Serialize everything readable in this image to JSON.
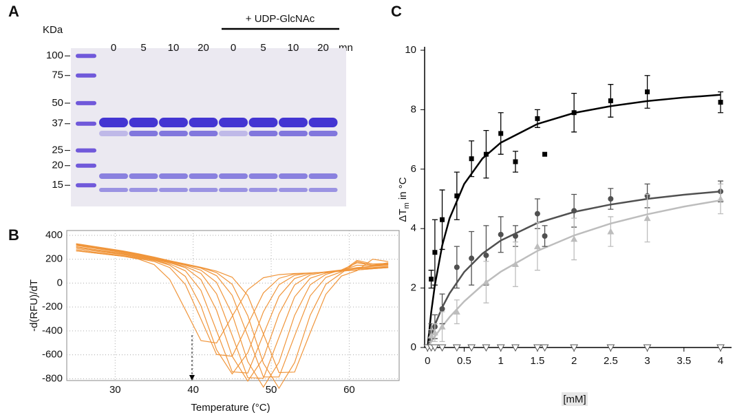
{
  "chart_data": [
    {
      "type": "gel",
      "panel": "A",
      "y_label": "KDa",
      "markers": [
        100,
        75,
        50,
        37,
        25,
        20,
        15
      ],
      "ylim": [
        11,
        112
      ],
      "log_scale": true,
      "lanes": [
        0,
        5,
        10,
        20,
        0,
        5,
        10,
        20
      ],
      "lane_unit": "mn",
      "treatment": "+ UDP-GlcNAc"
    },
    {
      "type": "line",
      "panel": "B",
      "x_label": "Temperature (°C)",
      "y_label": "-d(RFU)/dT",
      "color": "#f0953a",
      "grid": true,
      "xlim": [
        23.8,
        66.4
      ],
      "ylim": [
        -815,
        440
      ],
      "xticks": [
        30,
        40,
        50,
        60
      ],
      "yticks": [
        400,
        200,
        0,
        -200,
        -400,
        -600,
        -800
      ],
      "x": [
        25,
        27,
        29,
        31,
        33,
        35,
        37,
        39,
        41,
        43,
        45,
        47,
        49,
        51,
        53,
        55,
        57,
        59,
        61,
        63,
        65
      ],
      "series": [
        {
          "values": [
            270,
            255,
            240,
            225,
            201,
            155,
            30,
            -223,
            -481,
            -501,
            -278,
            -55,
            45,
            71,
            80,
            85,
            90,
            100,
            110,
            120,
            130
          ]
        },
        {
          "values": [
            270,
            255,
            240,
            225,
            205,
            181,
            130,
            -12,
            -301,
            -597,
            -612,
            -346,
            -82,
            40,
            76,
            85,
            90,
            100,
            110,
            120,
            130
          ]
        },
        {
          "values": [
            280,
            262,
            246,
            230,
            210,
            190,
            150,
            56,
            -190,
            -558,
            -760,
            -583,
            -240,
            -14,
            65,
            85,
            92,
            105,
            120,
            125,
            135
          ]
        },
        {
          "values": [
            290,
            272,
            255,
            238,
            216,
            190,
            160,
            103,
            -61,
            -399,
            -742,
            -752,
            -429,
            -111,
            38,
            80,
            95,
            110,
            125,
            130,
            140
          ]
        },
        {
          "values": [
            300,
            280,
            262,
            244,
            222,
            196,
            170,
            129,
            30,
            -228,
            -612,
            -820,
            -627,
            -258,
            -15,
            69,
            92,
            108,
            130,
            140,
            150
          ]
        },
        {
          "values": [
            305,
            285,
            266,
            248,
            226,
            200,
            170,
            139,
            81,
            -90,
            -438,
            -791,
            -796,
            -453,
            -115,
            41,
            84,
            105,
            150,
            145,
            155
          ]
        },
        {
          "values": [
            315,
            295,
            275,
            255,
            232,
            205,
            175,
            150,
            108,
            6,
            -260,
            -657,
            -870,
            -662,
            -270,
            -14,
            73,
            110,
            170,
            150,
            160
          ]
        },
        {
          "values": [
            320,
            300,
            280,
            260,
            236,
            210,
            180,
            155,
            125,
            62,
            -102,
            -442,
            -785,
            -785,
            -442,
            -107,
            47,
            95,
            190,
            160,
            165
          ]
        },
        {
          "values": [
            325,
            305,
            285,
            265,
            240,
            214,
            184,
            158,
            130,
            88,
            -10,
            -273,
            -670,
            -880,
            -665,
            -268,
            -10,
            83,
            180,
            150,
            170
          ]
        },
        {
          "values": [
            330,
            310,
            290,
            270,
            245,
            218,
            188,
            160,
            132,
            100,
            49,
            -104,
            -425,
            -749,
            -744,
            -415,
            -94,
            59,
            105,
            200,
            180
          ]
        }
      ]
    },
    {
      "type": "scatter",
      "panel": "C",
      "x_label": "[mM]",
      "y_label": [
        "ΔT",
        "m",
        " in °C"
      ],
      "xlim": [
        -0.04,
        4.15
      ],
      "ylim": [
        0,
        10
      ],
      "xticks": [
        0,
        0.5,
        1,
        1.5,
        2,
        2.5,
        3,
        3.5,
        4
      ],
      "yticks": [
        0,
        2,
        4,
        6,
        8,
        10
      ],
      "series": [
        {
          "color": "#000000",
          "marker": "square",
          "x": [
            0.05,
            0.1,
            0.2,
            0.4,
            0.6,
            0.8,
            1,
            1.2,
            1.5,
            1.6,
            2,
            2.5,
            3,
            4
          ],
          "values": [
            2.3,
            3.2,
            4.3,
            5.1,
            6.35,
            6.5,
            7.2,
            6.25,
            7.7,
            6.5,
            7.9,
            8.3,
            8.6,
            8.25
          ],
          "errors": [
            0.3,
            1.1,
            1,
            0.8,
            0.6,
            0.8,
            0.7,
            0.35,
            0.3,
            null,
            0.65,
            0.55,
            0.55,
            0.35
          ],
          "fit": {
            "x": [
              0,
              0.05,
              0.1,
              0.2,
              0.3,
              0.5,
              0.75,
              1,
              1.5,
              2,
              2.5,
              3,
              3.5,
              4
            ],
            "values": [
              0,
              1.19,
              2.1,
              3.43,
              4.34,
              5.5,
              6.36,
              6.89,
              7.52,
              7.89,
              8.12,
              8.29,
              8.41,
              8.5
            ]
          }
        },
        {
          "color": "#505050",
          "marker": "circle",
          "x": [
            0.05,
            0.1,
            0.2,
            0.4,
            0.6,
            0.8,
            1,
            1.2,
            1.5,
            1.6,
            2,
            2.5,
            3,
            4
          ],
          "values": [
            0.5,
            0.7,
            1.3,
            2.7,
            3.0,
            3.1,
            3.8,
            3.75,
            4.5,
            3.75,
            4.6,
            5.0,
            5.1,
            5.25
          ],
          "errors": [
            0.3,
            0.4,
            0.5,
            0.7,
            0.9,
            1.0,
            0.6,
            0.35,
            0.5,
            0.35,
            0.55,
            0.35,
            0.4,
            0.35
          ],
          "fit": {
            "x": [
              0,
              0.05,
              0.1,
              0.2,
              0.3,
              0.5,
              0.75,
              1,
              1.5,
              2,
              2.5,
              3,
              3.5,
              4
            ],
            "values": [
              0,
              0.4,
              0.76,
              1.35,
              1.82,
              2.54,
              3.16,
              3.6,
              4.19,
              4.56,
              4.81,
              5.0,
              5.14,
              5.25
            ]
          }
        },
        {
          "color": "#bdbdbd",
          "marker": "triangle",
          "x": [
            0.05,
            0.1,
            0.2,
            0.4,
            0.8,
            1.2,
            1.5,
            2,
            2.5,
            3,
            4
          ],
          "values": [
            0.4,
            0.5,
            0.7,
            1.2,
            2.2,
            2.8,
            3.4,
            3.65,
            3.9,
            4.35,
            5.0
          ],
          "errors": [
            0.2,
            0.3,
            0.5,
            0.4,
            0.7,
            0.75,
            0.8,
            0.7,
            0.5,
            0.8,
            0.5
          ],
          "fit": {
            "x": [
              0,
              0.05,
              0.1,
              0.2,
              0.3,
              0.5,
              0.75,
              1,
              1.5,
              2,
              2.5,
              3,
              3.5,
              4
            ],
            "values": [
              0,
              0.19,
              0.37,
              0.71,
              1.02,
              1.55,
              2.1,
              2.55,
              3.25,
              3.77,
              4.17,
              4.48,
              4.74,
              4.95
            ]
          }
        },
        {
          "color": "#555555",
          "marker": "triangle-down-open",
          "x": [
            0,
            0.05,
            0.1,
            0.2,
            0.4,
            0.6,
            0.8,
            1,
            1.2,
            1.5,
            1.6,
            2,
            2.5,
            3,
            4
          ],
          "values": [
            0,
            0,
            0,
            0,
            0,
            0,
            0,
            0,
            0,
            0,
            0,
            0,
            0,
            0,
            0
          ]
        }
      ]
    }
  ]
}
